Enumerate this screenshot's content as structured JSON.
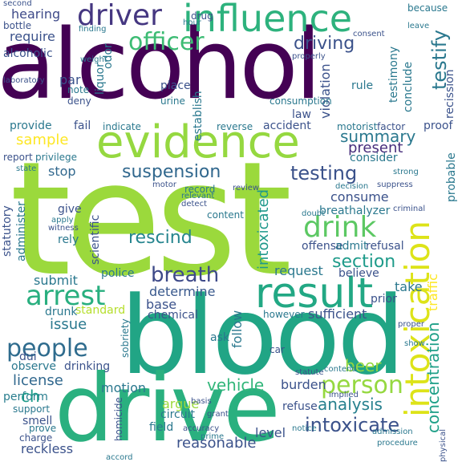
{
  "word_cloud": {
    "words": [
      {
        "text": "test",
        "color": "#9bd93c"
      },
      {
        "text": "alcohol",
        "color": "#440154"
      },
      {
        "text": "blood",
        "color": "#21a585"
      },
      {
        "text": "drive",
        "color": "#2ab07f"
      },
      {
        "text": "evidence",
        "color": "#95d840"
      },
      {
        "text": "influence",
        "color": "#2db27d"
      },
      {
        "text": "intoxication",
        "color": "#dde318"
      },
      {
        "text": "result",
        "color": "#22a884"
      },
      {
        "text": "driver",
        "color": "#453781"
      },
      {
        "text": "officer",
        "color": "#3dbc74"
      },
      {
        "text": "arrest",
        "color": "#29af7f"
      },
      {
        "text": "people",
        "color": "#2f6c8e"
      },
      {
        "text": "drink",
        "color": "#5cc863"
      },
      {
        "text": "intoxicate",
        "color": "#3b528b"
      },
      {
        "text": "suspension",
        "color": "#30678d"
      },
      {
        "text": "person",
        "color": "#95d840"
      },
      {
        "text": "breath",
        "color": "#3e4a89"
      },
      {
        "text": "testing",
        "color": "#3b528b"
      },
      {
        "text": "driving",
        "color": "#3b528b"
      },
      {
        "text": "sample",
        "color": "#fde725"
      },
      {
        "text": "rescind",
        "color": "#25858e"
      },
      {
        "text": "summary",
        "color": "#2a788e"
      },
      {
        "text": "testify",
        "color": "#2a788e"
      },
      {
        "text": "intoxicated",
        "color": "#1f988b"
      },
      {
        "text": "vehicle",
        "color": "#32b67a"
      },
      {
        "text": "analysis",
        "color": "#27808e"
      },
      {
        "text": "section",
        "color": "#1e9b8a"
      },
      {
        "text": "reasonable",
        "color": "#3b528b"
      },
      {
        "text": "license",
        "color": "#31688e"
      },
      {
        "text": "require",
        "color": "#3b528b"
      },
      {
        "text": "hearing",
        "color": "#3e4a89"
      },
      {
        "text": "beer",
        "color": "#95d840"
      },
      {
        "text": "burden",
        "color": "#3b528b"
      },
      {
        "text": "issue",
        "color": "#2a788e"
      },
      {
        "text": "determine",
        "color": "#38588c"
      },
      {
        "text": "present",
        "color": "#472d7b"
      },
      {
        "text": "consume",
        "color": "#3b528b"
      },
      {
        "text": "concentration",
        "color": "#1fa088"
      },
      {
        "text": "reckless",
        "color": "#3b528b"
      },
      {
        "text": "motion",
        "color": "#2a788e"
      },
      {
        "text": "submit",
        "color": "#2a788e"
      },
      {
        "text": "stop",
        "color": "#31688e"
      },
      {
        "text": "base",
        "color": "#3b528b"
      },
      {
        "text": "police",
        "color": "#2a788e"
      },
      {
        "text": "standard",
        "color": "#b5de2b"
      },
      {
        "text": "drunk",
        "color": "#2a788e"
      },
      {
        "text": "perform",
        "color": "#287d8e"
      },
      {
        "text": "ch",
        "color": "#1e9b8a"
      },
      {
        "text": "argue",
        "color": "#9bd93c"
      },
      {
        "text": "level",
        "color": "#3b528b"
      },
      {
        "text": "circuit",
        "color": "#2a788e"
      },
      {
        "text": "chemical",
        "color": "#3b528b"
      },
      {
        "text": "scientific",
        "color": "#3b528b"
      },
      {
        "text": "establish",
        "color": "#2a788e"
      },
      {
        "text": "alcoholic",
        "color": "#3b528b"
      },
      {
        "text": "liquor",
        "color": "#2a788e"
      },
      {
        "text": "odor",
        "color": "#2a788e"
      },
      {
        "text": "violation",
        "color": "#3b528b"
      },
      {
        "text": "conclude",
        "color": "#2a788e"
      },
      {
        "text": "recission",
        "color": "#3b528b"
      },
      {
        "text": "testimony",
        "color": "#2a788e"
      },
      {
        "text": "traffic",
        "color": "#fde725"
      },
      {
        "text": "probable",
        "color": "#2a788e"
      },
      {
        "text": "proof",
        "color": "#3b528b"
      },
      {
        "text": "consider",
        "color": "#2a788e"
      },
      {
        "text": "breathalyzer",
        "color": "#2a788e"
      },
      {
        "text": "offense",
        "color": "#3b528b"
      },
      {
        "text": "refusal",
        "color": "#3b528b"
      },
      {
        "text": "admit",
        "color": "#2a788e"
      },
      {
        "text": "request",
        "color": "#2a788e"
      },
      {
        "text": "believe",
        "color": "#3b528b"
      },
      {
        "text": "take",
        "color": "#2a788e"
      },
      {
        "text": "prior",
        "color": "#3b528b"
      },
      {
        "text": "sufficient",
        "color": "#3b528b"
      },
      {
        "text": "however",
        "color": "#2a788e"
      },
      {
        "text": "follow",
        "color": "#2a788e"
      },
      {
        "text": "statutory",
        "color": "#3b528b"
      },
      {
        "text": "administer",
        "color": "#2a788e"
      },
      {
        "text": "give",
        "color": "#3b528b"
      },
      {
        "text": "rely",
        "color": "#2a788e"
      },
      {
        "text": "provide",
        "color": "#2a788e"
      },
      {
        "text": "report",
        "color": "#3b528b"
      },
      {
        "text": "privilege",
        "color": "#2a788e"
      },
      {
        "text": "fail",
        "color": "#3b528b"
      },
      {
        "text": "indicate",
        "color": "#2a788e"
      },
      {
        "text": "accident",
        "color": "#3b528b"
      },
      {
        "text": "motorist",
        "color": "#2a788e"
      },
      {
        "text": "factor",
        "color": "#3b528b"
      },
      {
        "text": "reverse",
        "color": "#2a788e"
      },
      {
        "text": "law",
        "color": "#3b528b"
      },
      {
        "text": "rule",
        "color": "#2a788e"
      },
      {
        "text": "place",
        "color": "#3b528b"
      },
      {
        "text": "urine",
        "color": "#2a788e"
      },
      {
        "text": "par",
        "color": "#3b528b"
      },
      {
        "text": "note",
        "color": "#2a788e"
      },
      {
        "text": "deny",
        "color": "#3b528b"
      },
      {
        "text": "weight",
        "color": "#2a788e"
      },
      {
        "text": "bottle",
        "color": "#3b528b"
      },
      {
        "text": "finding",
        "color": "#2a788e"
      },
      {
        "text": "drug",
        "color": "#3b528b"
      },
      {
        "text": "because",
        "color": "#2a788e"
      },
      {
        "text": "consent",
        "color": "#3b528b"
      },
      {
        "text": "leave",
        "color": "#2a788e"
      },
      {
        "text": "properly",
        "color": "#3b528b"
      },
      {
        "text": "consumption",
        "color": "#2a788e"
      },
      {
        "text": "dui",
        "color": "#3b528b"
      },
      {
        "text": "sobriety",
        "color": "#2a788e"
      },
      {
        "text": "homicide",
        "color": "#3b528b"
      },
      {
        "text": "observe",
        "color": "#2a788e"
      },
      {
        "text": "drinking",
        "color": "#3b528b"
      },
      {
        "text": "ask",
        "color": "#2a788e"
      },
      {
        "text": "car",
        "color": "#3b528b"
      },
      {
        "text": "support",
        "color": "#2a788e"
      },
      {
        "text": "smell",
        "color": "#3b528b"
      },
      {
        "text": "prove",
        "color": "#2a788e"
      },
      {
        "text": "charge",
        "color": "#3b528b"
      },
      {
        "text": "field",
        "color": "#2a788e"
      },
      {
        "text": "refuse",
        "color": "#3b528b"
      },
      {
        "text": "record",
        "color": "#2a788e"
      },
      {
        "text": "review",
        "color": "#3b528b"
      },
      {
        "text": "content",
        "color": "#2a788e"
      },
      {
        "text": "detect",
        "color": "#3b528b"
      },
      {
        "text": "relevant",
        "color": "#2a788e"
      },
      {
        "text": "motor",
        "color": "#3b528b"
      },
      {
        "text": "decision",
        "color": "#2a788e"
      },
      {
        "text": "suppress",
        "color": "#3b528b"
      },
      {
        "text": "strong",
        "color": "#2a788e"
      },
      {
        "text": "criminal",
        "color": "#3b528b"
      },
      {
        "text": "doubt",
        "color": "#2a788e"
      },
      {
        "text": "statute",
        "color": "#3b528b"
      },
      {
        "text": "contend",
        "color": "#2a788e"
      },
      {
        "text": "implied",
        "color": "#3b528b"
      },
      {
        "text": "notice",
        "color": "#2a788e"
      },
      {
        "text": "accuracy",
        "color": "#3b528b"
      },
      {
        "text": "accord",
        "color": "#2a788e"
      },
      {
        "text": "basis",
        "color": "#3b528b"
      },
      {
        "text": "procedure",
        "color": "#2a788e"
      },
      {
        "text": "physical",
        "color": "#3b528b"
      },
      {
        "text": "admission",
        "color": "#2a788e"
      },
      {
        "text": "proper",
        "color": "#3b528b"
      },
      {
        "text": "show",
        "color": "#2a788e"
      },
      {
        "text": "second",
        "color": "#3b528b"
      },
      {
        "text": "hour",
        "color": "#2a788e"
      },
      {
        "text": "laboratory",
        "color": "#3b528b"
      },
      {
        "text": "apply",
        "color": "#2a788e"
      },
      {
        "text": "witness",
        "color": "#3b528b"
      },
      {
        "text": "state",
        "color": "#2a788e"
      },
      {
        "text": "grant",
        "color": "#3b528b"
      },
      {
        "text": "prime",
        "color": "#2a788e"
      }
    ]
  }
}
